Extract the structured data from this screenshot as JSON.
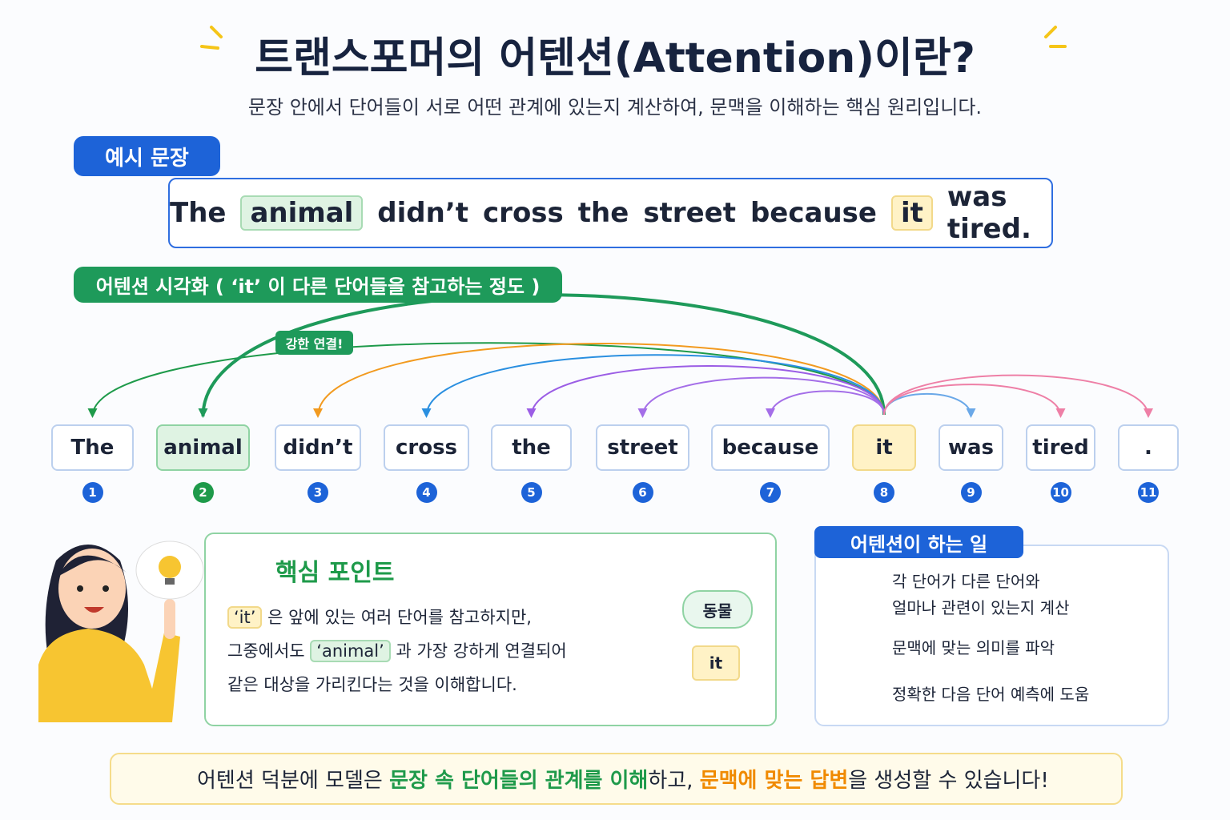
{
  "header": {
    "title": "트랜스포머의 어텐션(Attention)이란?",
    "subtitle": "문장 안에서 단어들이 서로 어떤 관계에 있는지 계산하여, 문맥을 이해하는 핵심 원리입니다."
  },
  "example": {
    "label": "예시 문장",
    "words": [
      {
        "text": "The"
      },
      {
        "text": "animal",
        "highlight": "green"
      },
      {
        "text": "didn’t"
      },
      {
        "text": "cross"
      },
      {
        "text": "the"
      },
      {
        "text": "street"
      },
      {
        "text": "because"
      },
      {
        "text": "it",
        "highlight": "yellow"
      },
      {
        "text": "was tired."
      }
    ]
  },
  "visualization": {
    "label": "어텐션 시각화 ( ‘it’ 이 다른 단어들을 참고하는 정도 )",
    "annotation": "강한 연결!",
    "tokens": [
      {
        "text": "The",
        "index": 1
      },
      {
        "text": "animal",
        "index": 2,
        "highlight": "green"
      },
      {
        "text": "didn’t",
        "index": 3
      },
      {
        "text": "cross",
        "index": 4
      },
      {
        "text": "the",
        "index": 5
      },
      {
        "text": "street",
        "index": 6
      },
      {
        "text": "because",
        "index": 7
      },
      {
        "text": "it",
        "index": 8,
        "highlight": "yellow"
      },
      {
        "text": "was",
        "index": 9
      },
      {
        "text": "tired",
        "index": 10
      },
      {
        "text": ".",
        "index": 11
      }
    ]
  },
  "key_point": {
    "title": "핵심 포인트",
    "lines": [
      [
        {
          "text": "‘it’",
          "highlight": "yellow"
        },
        {
          "text": " 은 앞에 있는 여러 단어를 참고하지만,"
        }
      ],
      [
        {
          "text": "그중에서도 "
        },
        {
          "text": "‘animal’",
          "highlight": "green"
        },
        {
          "text": " 과 가장 강하게 연결되어"
        }
      ],
      [
        {
          "text": "같은 대상을 가리킨다는 것을 이해합니다."
        }
      ]
    ],
    "bubble": "동물",
    "target": "it"
  },
  "roles": {
    "title": "어텐션이 하는 일",
    "items": [
      [
        "각 단어가 다른 단어와",
        "얼마나 관련이 있는지 계산"
      ],
      [
        "문맥에 맞는 의미를 파악"
      ],
      [
        "정확한 다음 단어 예측에 도움"
      ]
    ]
  },
  "footer": {
    "segments": [
      {
        "text": "어텐션 덕분에 모델은 "
      },
      {
        "text": "문장 속 단어들의 관계를 이해",
        "highlight": "green"
      },
      {
        "text": "하고, "
      },
      {
        "text": "문맥에 맞는 답변",
        "highlight": "orange"
      },
      {
        "text": "을 생성할 수 있습니다!"
      }
    ]
  }
}
